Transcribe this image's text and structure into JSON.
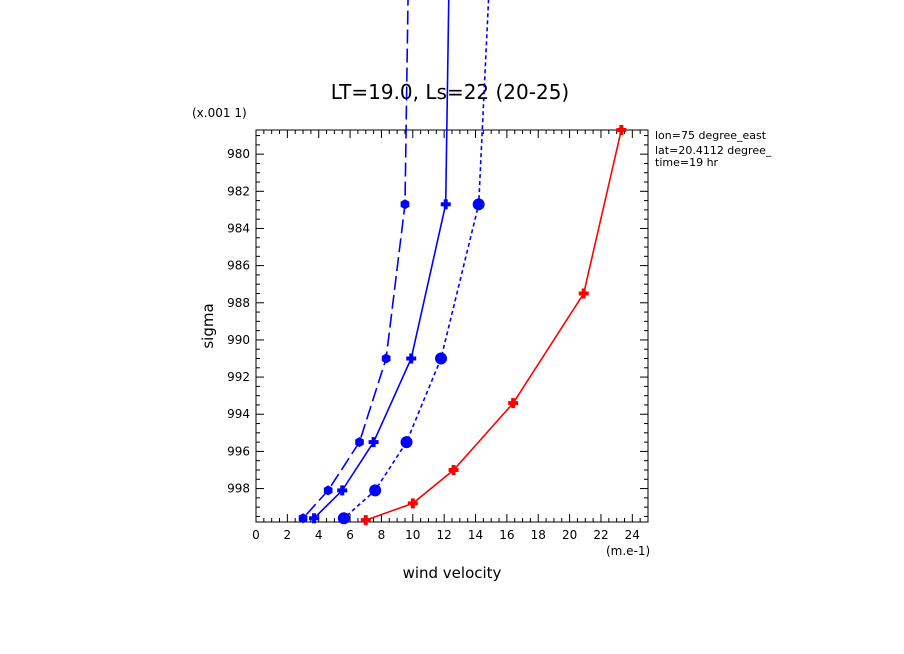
{
  "chart_data": {
    "type": "line",
    "title": "LT=19.0, Ls=22 (20-25)",
    "xlabel": "wind velocity",
    "ylabel": "sigma",
    "x_unit_label": "(m.e-1)",
    "y_unit_label": "(x.001 1)",
    "xlim": [
      0,
      25
    ],
    "ylim": [
      999.8,
      978.7
    ],
    "x_ticks": [
      0,
      2,
      4,
      6,
      8,
      10,
      12,
      14,
      16,
      18,
      20,
      22,
      24
    ],
    "y_ticks": [
      980,
      982,
      984,
      986,
      988,
      990,
      992,
      994,
      996,
      998
    ],
    "grid": false,
    "info": [
      "lon=75 degree_east",
      "lat=20.4112 degree_",
      "time=19 hr"
    ],
    "series": [
      {
        "color": "#0000ff",
        "style": "long-dash",
        "marker": "hexagon",
        "points": [
          [
            9.9,
            960.0
          ],
          [
            9.5,
            982.7
          ],
          [
            8.3,
            991.0
          ],
          [
            6.6,
            995.5
          ],
          [
            4.6,
            998.1
          ],
          [
            3.0,
            999.6
          ]
        ]
      },
      {
        "color": "#0000ff",
        "style": "solid",
        "marker": "plus",
        "points": [
          [
            12.5,
            960.0
          ],
          [
            12.1,
            982.7
          ],
          [
            9.9,
            991.0
          ],
          [
            7.5,
            995.5
          ],
          [
            5.5,
            998.1
          ],
          [
            3.7,
            999.6
          ]
        ]
      },
      {
        "color": "#0000ff",
        "style": "short-dash",
        "marker": "circle",
        "points": [
          [
            15.5,
            960.0
          ],
          [
            14.2,
            982.7
          ],
          [
            11.8,
            991.0
          ],
          [
            9.6,
            995.5
          ],
          [
            7.6,
            998.1
          ],
          [
            5.6,
            999.6
          ]
        ]
      },
      {
        "color": "#ff0000",
        "style": "solid",
        "marker": "plus",
        "points": [
          [
            23.3,
            978.7
          ],
          [
            20.9,
            987.5
          ],
          [
            16.4,
            993.4
          ],
          [
            12.6,
            997.0
          ],
          [
            10.0,
            998.8
          ],
          [
            7.0,
            999.7
          ]
        ]
      }
    ]
  }
}
